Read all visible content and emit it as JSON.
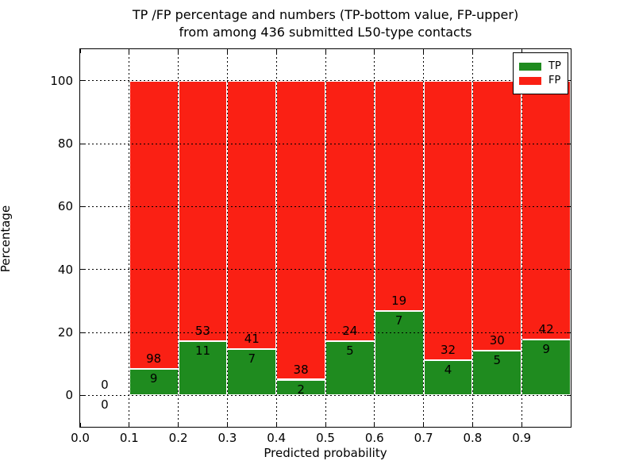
{
  "chart_data": {
    "type": "bar",
    "stacked": true,
    "title_line1": "TP /FP percentage and numbers (TP-bottom value, FP-upper)",
    "title_line2": "from among 436 submitted L50-type contacts",
    "xlabel": "Predicted probability",
    "ylabel": "Percentage",
    "total_contacts": 436,
    "xlim": [
      0.0,
      1.0
    ],
    "ylim": [
      -10,
      110
    ],
    "xticks": [
      "0.0",
      "0.1",
      "0.2",
      "0.3",
      "0.4",
      "0.5",
      "0.6",
      "0.7",
      "0.8",
      "0.9"
    ],
    "yticks": [
      "0",
      "20",
      "40",
      "60",
      "80",
      "100"
    ],
    "grid": "dotted, drawn above bars",
    "legend": {
      "position": "upper right",
      "entries": [
        {
          "label": "TP",
          "color": "#1f8b1f"
        },
        {
          "label": "FP",
          "color": "#fa2014"
        }
      ]
    },
    "bins": [
      {
        "range": [
          0.0,
          0.1
        ],
        "tp": 0,
        "fp": 0
      },
      {
        "range": [
          0.1,
          0.2
        ],
        "tp": 9,
        "fp": 98
      },
      {
        "range": [
          0.2,
          0.3
        ],
        "tp": 11,
        "fp": 53
      },
      {
        "range": [
          0.3,
          0.4
        ],
        "tp": 7,
        "fp": 41
      },
      {
        "range": [
          0.4,
          0.5
        ],
        "tp": 2,
        "fp": 38
      },
      {
        "range": [
          0.5,
          0.6
        ],
        "tp": 5,
        "fp": 24
      },
      {
        "range": [
          0.6,
          0.7
        ],
        "tp": 7,
        "fp": 19
      },
      {
        "range": [
          0.7,
          0.8
        ],
        "tp": 4,
        "fp": 32
      },
      {
        "range": [
          0.8,
          0.9
        ],
        "tp": 5,
        "fp": 30
      },
      {
        "range": [
          0.9,
          1.0
        ],
        "tp": 9,
        "fp": 42
      }
    ],
    "series": [
      {
        "name": "TP",
        "values_pct": [
          0,
          8.41,
          17.19,
          14.58,
          5.0,
          17.24,
          26.92,
          11.11,
          14.29,
          17.65
        ]
      },
      {
        "name": "FP",
        "values_pct": [
          0,
          91.59,
          82.81,
          85.42,
          95.0,
          82.76,
          73.08,
          88.89,
          85.71,
          82.35
        ]
      }
    ],
    "colors": {
      "tp": "#1f8b1f",
      "fp": "#fa2014",
      "grid": "#000000",
      "text": "#000000",
      "background": "#ffffff",
      "bar_edge": "#ffffff"
    }
  }
}
